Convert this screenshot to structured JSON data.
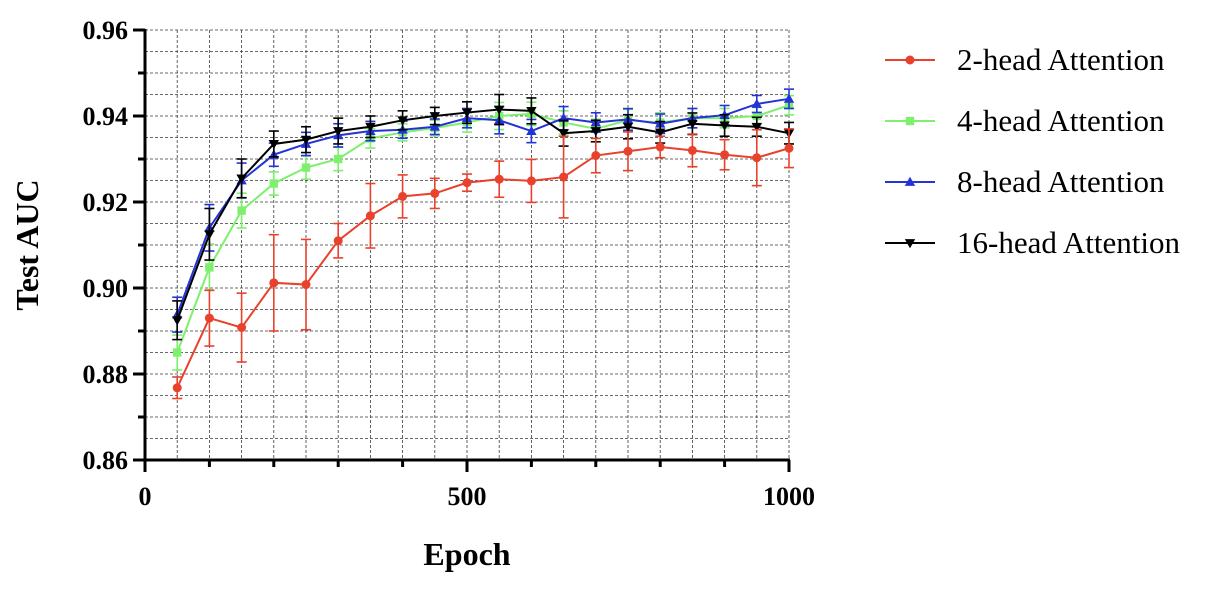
{
  "chart_data": {
    "type": "line",
    "title": "",
    "xlabel": "Epoch",
    "ylabel": "Test AUC",
    "xlim": [
      0,
      1000
    ],
    "ylim": [
      0.86,
      0.96
    ],
    "x_ticks": [
      0,
      500,
      1000
    ],
    "x_tick_labels": [
      "0",
      "500",
      "1000"
    ],
    "y_ticks": [
      0.86,
      0.88,
      0.9,
      0.92,
      0.94,
      0.96
    ],
    "y_tick_labels": [
      "0.86",
      "0.88",
      "0.90",
      "0.92",
      "0.94",
      "0.96"
    ],
    "grid": true,
    "legend_position": "right",
    "x": [
      50,
      100,
      150,
      200,
      250,
      300,
      350,
      400,
      450,
      500,
      550,
      600,
      650,
      700,
      750,
      800,
      850,
      900,
      950,
      1000
    ],
    "series": [
      {
        "name": "2-head Attention",
        "color": "#e8412c",
        "marker": "circle",
        "values": [
          0.8768,
          0.893,
          0.8908,
          0.9012,
          0.9008,
          0.911,
          0.9168,
          0.9213,
          0.922,
          0.9245,
          0.9253,
          0.9249,
          0.9258,
          0.9308,
          0.9318,
          0.9328,
          0.932,
          0.931,
          0.9303,
          0.9325
        ],
        "errors": [
          0.0025,
          0.0065,
          0.008,
          0.0112,
          0.0105,
          0.004,
          0.0075,
          0.005,
          0.0035,
          0.002,
          0.0042,
          0.005,
          0.0095,
          0.004,
          0.0045,
          0.0025,
          0.0038,
          0.0035,
          0.0065,
          0.0045
        ]
      },
      {
        "name": "4-head Attention",
        "color": "#7ef06e",
        "marker": "square",
        "values": [
          0.885,
          0.9048,
          0.918,
          0.9243,
          0.928,
          0.93,
          0.9348,
          0.9362,
          0.9372,
          0.9385,
          0.94,
          0.9405,
          0.9385,
          0.937,
          0.939,
          0.9385,
          0.9395,
          0.9395,
          0.94,
          0.9425
        ]
      },
      {
        "name": "8-head Attention",
        "color": "#2433d6",
        "marker": "triangle-up",
        "values": [
          0.8938,
          0.914,
          0.925,
          0.931,
          0.9335,
          0.9355,
          0.9365,
          0.9368,
          0.9375,
          0.9395,
          0.939,
          0.9365,
          0.9395,
          0.9385,
          0.9392,
          0.9382,
          0.9395,
          0.9402,
          0.9428,
          0.944
        ]
      },
      {
        "name": "16-head Attention",
        "color": "#000000",
        "marker": "triangle-down",
        "values": [
          0.8925,
          0.9125,
          0.9255,
          0.9335,
          0.9345,
          0.9365,
          0.9375,
          0.939,
          0.94,
          0.9408,
          0.9415,
          0.9412,
          0.936,
          0.9365,
          0.9375,
          0.9362,
          0.9382,
          0.9378,
          0.9375,
          0.936
        ]
      }
    ]
  }
}
